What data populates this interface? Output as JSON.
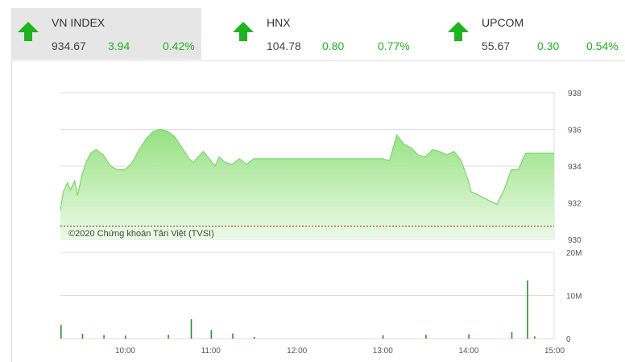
{
  "tabs": [
    {
      "name": "VN INDEX",
      "price": "934.67",
      "change": "3.94",
      "percent": "0.42%",
      "active": true
    },
    {
      "name": "HNX",
      "price": "104.78",
      "change": "0.80",
      "percent": "0.77%",
      "active": false
    },
    {
      "name": "UPCOM",
      "price": "55.67",
      "change": "0.30",
      "percent": "0.54%",
      "active": false
    }
  ],
  "icons": {
    "up_arrow": "arrow-up-icon"
  },
  "colors": {
    "up": "#1fb31f",
    "line": "#7fd66a",
    "reference": "#b22222",
    "grid": "#dddddd"
  },
  "copyright": "©2020 Chứng khoán Tân Việt (TVSI)",
  "chart_data": {
    "type": "area",
    "price_axis": {
      "ticks": [
        "938",
        "936",
        "934",
        "932",
        "930"
      ],
      "ylim": [
        930,
        938
      ]
    },
    "volume_axis": {
      "ticks": [
        "20M",
        "10M",
        "0"
      ],
      "ylim": [
        0,
        20
      ]
    },
    "time_ticks": [
      "10:00",
      "11:00",
      "12:00",
      "13:00",
      "14:00",
      "15:00"
    ],
    "reference_price": 930.73,
    "series": [
      {
        "name": "price",
        "x": [
          "09:15",
          "09:17",
          "09:20",
          "09:22",
          "09:25",
          "09:27",
          "09:30",
          "09:33",
          "09:36",
          "09:40",
          "09:45",
          "09:50",
          "09:55",
          "10:00",
          "10:03",
          "10:06",
          "10:10",
          "10:15",
          "10:20",
          "10:25",
          "10:30",
          "10:35",
          "10:40",
          "10:45",
          "10:48",
          "10:50",
          "10:55",
          "11:00",
          "11:03",
          "11:06",
          "11:10",
          "11:15",
          "11:20",
          "11:25",
          "11:30",
          "13:00",
          "13:05",
          "13:10",
          "13:15",
          "13:20",
          "13:25",
          "13:30",
          "13:35",
          "13:40",
          "13:45",
          "13:50",
          "13:55",
          "14:00",
          "14:02",
          "14:05",
          "14:10",
          "14:15",
          "14:20",
          "14:25",
          "14:30",
          "14:35",
          "14:40",
          "14:45",
          "14:46"
        ],
        "values": [
          931.6,
          932.6,
          933.1,
          932.7,
          933.2,
          932.4,
          933.5,
          934.2,
          934.7,
          934.9,
          934.6,
          934.0,
          933.8,
          933.8,
          934.0,
          934.3,
          934.9,
          935.5,
          935.9,
          936.0,
          935.9,
          935.6,
          935.0,
          934.4,
          934.2,
          934.4,
          934.8,
          934.3,
          934.0,
          934.5,
          934.2,
          934.1,
          934.4,
          934.1,
          934.4,
          934.4,
          934.3,
          935.7,
          935.2,
          935.0,
          934.6,
          934.5,
          934.9,
          934.8,
          934.6,
          934.8,
          934.3,
          933.2,
          932.6,
          932.5,
          932.3,
          932.1,
          931.9,
          932.7,
          933.8,
          933.8,
          934.7,
          934.7,
          934.7
        ]
      },
      {
        "name": "volume",
        "x": [
          "09:15",
          "09:30",
          "09:45",
          "10:00",
          "10:30",
          "10:46",
          "11:00",
          "11:15",
          "11:30",
          "13:00",
          "13:30",
          "14:00",
          "14:30",
          "14:41",
          "14:46"
        ],
        "values": [
          3.2,
          1.1,
          0.8,
          0.7,
          0.9,
          4.5,
          2.0,
          1.2,
          0.4,
          0.8,
          0.9,
          1.0,
          1.5,
          13.5,
          0.5
        ]
      }
    ],
    "grid": true
  }
}
